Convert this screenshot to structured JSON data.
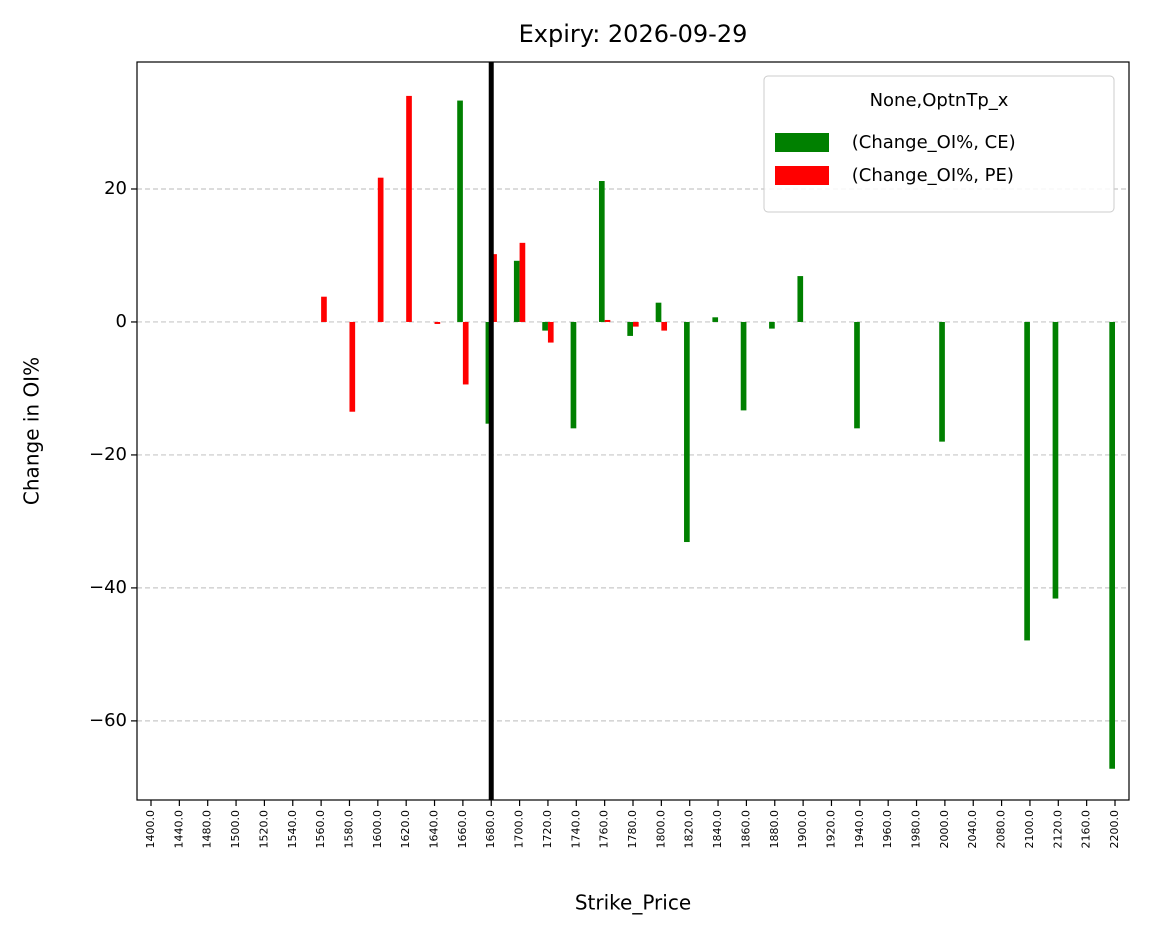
{
  "chart_data": {
    "type": "bar",
    "title": "Expiry: 2026-09-29",
    "x_label": "Strike_Price",
    "y_label": "Change in OI%",
    "categories": [
      "1400.0",
      "1440.0",
      "1480.0",
      "1500.0",
      "1520.0",
      "1540.0",
      "1560.0",
      "1580.0",
      "1600.0",
      "1620.0",
      "1640.0",
      "1660.0",
      "1680.0",
      "1700.0",
      "1720.0",
      "1740.0",
      "1760.0",
      "1780.0",
      "1800.0",
      "1820.0",
      "1840.0",
      "1860.0",
      "1880.0",
      "1900.0",
      "1920.0",
      "1940.0",
      "1960.0",
      "1980.0",
      "2000.0",
      "2040.0",
      "2080.0",
      "2100.0",
      "2120.0",
      "2160.0",
      "2200.0"
    ],
    "series": [
      {
        "name": " (Change_OI%, CE)",
        "color": "#008000",
        "values": [
          null,
          null,
          null,
          null,
          null,
          null,
          null,
          null,
          null,
          null,
          null,
          33.3,
          -15.3,
          9.2,
          -1.3,
          -16.0,
          21.2,
          -2.1,
          2.9,
          -33.1,
          0.7,
          -13.3,
          -1.0,
          6.9,
          null,
          -16.0,
          null,
          null,
          -18.0,
          null,
          null,
          -47.9,
          -41.6,
          null,
          -67.2
        ]
      },
      {
        "name": " (Change_OI%, PE)",
        "color": "#ff0000",
        "values": [
          null,
          null,
          null,
          null,
          null,
          null,
          3.8,
          -13.5,
          21.7,
          34.0,
          -0.3,
          -9.4,
          10.2,
          11.9,
          -3.1,
          null,
          0.3,
          -0.7,
          -1.3,
          null,
          null,
          null,
          null,
          null,
          null,
          null,
          null,
          null,
          null,
          null,
          null,
          null,
          null,
          null,
          null
        ]
      }
    ],
    "ylim": [
      -71.9,
      39.1
    ],
    "yticks": [
      {
        "value": -60,
        "label": "−60"
      },
      {
        "value": -40,
        "label": "−40"
      },
      {
        "value": -20,
        "label": "−20"
      },
      0,
      20
    ],
    "grid": true,
    "legend_title": "None,OptnTp_x",
    "legend_position": "upper right",
    "vline_at": "1680.0",
    "vline_color": "#000000"
  }
}
